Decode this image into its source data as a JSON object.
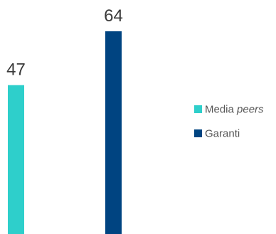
{
  "chart_data": {
    "type": "bar",
    "title": "",
    "xlabel": "",
    "ylabel": "",
    "ylim": [
      0,
      64
    ],
    "grid": false,
    "legend_position": "right",
    "series": [
      {
        "name": "Media peers",
        "name_parts": [
          "Media ",
          "peers"
        ],
        "value": 47,
        "color": "#2ecfcb"
      },
      {
        "name": "Garanti",
        "name_parts": [
          "Garanti",
          ""
        ],
        "value": 64,
        "color": "#004481"
      }
    ]
  }
}
